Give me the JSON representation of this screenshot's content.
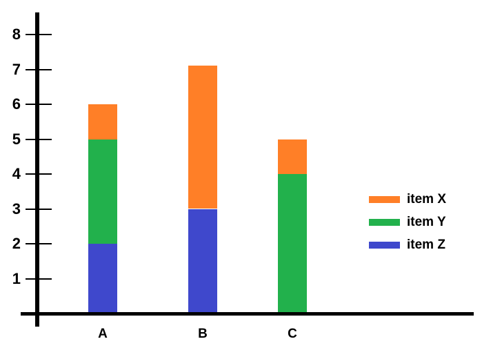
{
  "chart_data": {
    "type": "bar",
    "stacked": true,
    "title": "",
    "xlabel": "",
    "ylabel": "",
    "categories": [
      "A",
      "B",
      "C"
    ],
    "series": [
      {
        "name": "item X",
        "color": "#FF7F27",
        "values": [
          1,
          4.1,
          1
        ]
      },
      {
        "name": "item Y",
        "color": "#22B14C",
        "values": [
          3,
          0,
          4
        ]
      },
      {
        "name": "item Z",
        "color": "#3F48CC",
        "values": [
          2,
          3,
          0
        ]
      }
    ],
    "stack_order_bottom_to_top": [
      "item Z",
      "item Y",
      "item X"
    ],
    "stack_totals": [
      6,
      7.1,
      5
    ],
    "y_ticks": [
      1,
      2,
      3,
      4,
      5,
      6,
      7,
      8
    ],
    "ylim": [
      0,
      8.6
    ],
    "grid": false,
    "legend_position": "right",
    "axis_color": "#000000",
    "background_color": "#FFFFFF"
  }
}
